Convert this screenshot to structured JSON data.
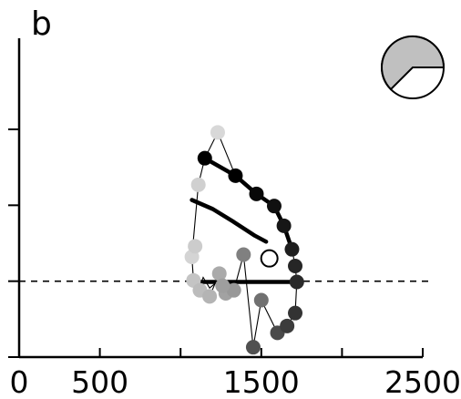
{
  "panel_label": "b",
  "chart_data": {
    "type": "scatter",
    "title": "",
    "xlabel": "",
    "ylabel": "",
    "xlim": [
      0,
      2500
    ],
    "ylim": [
      -1.0,
      3.2
    ],
    "x_ticks": [
      0,
      500,
      1000,
      1500,
      2000,
      2500
    ],
    "x_tick_labels": [
      "0",
      "500",
      "",
      "1500",
      "",
      "2500"
    ],
    "y_ticks": [
      -1,
      0,
      1,
      2
    ],
    "y_tick_labels": [
      "",
      "",
      "",
      ""
    ],
    "reference_line_y": 0,
    "pie_inset": {
      "highlighted_fraction": 0.375,
      "highlight_color": "#c0c0c0"
    },
    "points": [
      {
        "x": 1070,
        "y": 0.32,
        "shade": "#d4d4d4"
      },
      {
        "x": 1090,
        "y": 0.46,
        "shade": "#cccccc"
      },
      {
        "x": 1110,
        "y": 1.27,
        "shade": "#d0d0d0"
      },
      {
        "x": 1230,
        "y": 1.96,
        "shade": "#d8d8d8"
      },
      {
        "x": 1080,
        "y": 0.01,
        "shade": "#c4c4c4"
      },
      {
        "x": 1120,
        "y": -0.12,
        "shade": "#bcbcbc"
      },
      {
        "x": 1180,
        "y": -0.2,
        "shade": "#b4b4b4"
      },
      {
        "x": 1240,
        "y": 0.1,
        "shade": "#aaaaaa"
      },
      {
        "x": 1280,
        "y": -0.16,
        "shade": "#a2a2a2"
      },
      {
        "x": 1330,
        "y": -0.12,
        "shade": "#989898"
      },
      {
        "x": 1260,
        "y": -0.06,
        "shade": "#9e9e9e"
      },
      {
        "x": 1390,
        "y": 0.35,
        "shade": "#808080"
      },
      {
        "x": 1500,
        "y": -0.25,
        "shade": "#707070"
      },
      {
        "x": 1450,
        "y": -0.87,
        "shade": "#505050"
      },
      {
        "x": 1600,
        "y": -0.68,
        "shade": "#4a4a4a"
      },
      {
        "x": 1660,
        "y": -0.59,
        "shade": "#3c3c3c"
      },
      {
        "x": 1710,
        "y": -0.42,
        "shade": "#333333"
      },
      {
        "x": 1720,
        "y": -0.01,
        "shade": "#2a2a2a"
      },
      {
        "x": 1710,
        "y": 0.2,
        "shade": "#262626"
      },
      {
        "x": 1690,
        "y": 0.42,
        "shade": "#1e1e1e"
      },
      {
        "x": 1640,
        "y": 0.73,
        "shade": "#161616"
      },
      {
        "x": 1580,
        "y": 0.99,
        "shade": "#101010"
      },
      {
        "x": 1470,
        "y": 1.15,
        "shade": "#080808"
      },
      {
        "x": 1340,
        "y": 1.39,
        "shade": "#000000"
      },
      {
        "x": 1150,
        "y": 1.62,
        "shade": "#000000"
      }
    ],
    "open_circle": {
      "x": 1550,
      "y": 0.3
    },
    "thin_path": [
      [
        1150,
        1.62
      ],
      [
        1230,
        1.96
      ],
      [
        1340,
        1.39
      ],
      [
        1470,
        1.15
      ],
      [
        1580,
        0.99
      ],
      [
        1640,
        0.73
      ],
      [
        1690,
        0.42
      ],
      [
        1710,
        0.2
      ],
      [
        1720,
        -0.01
      ],
      [
        1710,
        -0.42
      ],
      [
        1660,
        -0.59
      ],
      [
        1600,
        -0.68
      ],
      [
        1500,
        -0.25
      ],
      [
        1450,
        -0.87
      ],
      [
        1390,
        0.35
      ],
      [
        1330,
        -0.12
      ],
      [
        1280,
        -0.16
      ],
      [
        1240,
        0.1
      ],
      [
        1180,
        -0.2
      ],
      [
        1120,
        -0.12
      ],
      [
        1080,
        0.01
      ],
      [
        1070,
        0.32
      ],
      [
        1110,
        1.27
      ],
      [
        1150,
        1.62
      ]
    ],
    "thin_path_2": [
      [
        1070,
        0.01
      ],
      [
        1110,
        -0.12
      ],
      [
        1140,
        0.05
      ],
      [
        1180,
        -0.09
      ],
      [
        1220,
        -0.02
      ],
      [
        1260,
        0.08
      ],
      [
        1300,
        -0.13
      ],
      [
        1340,
        -0.05
      ]
    ],
    "fit_curves": [
      {
        "points": [
          [
            1150,
            1.62
          ],
          [
            1340,
            1.39
          ],
          [
            1470,
            1.15
          ],
          [
            1580,
            0.99
          ],
          [
            1640,
            0.73
          ],
          [
            1690,
            0.42
          ]
        ]
      },
      {
        "points": [
          [
            1070,
            1.07
          ],
          [
            1200,
            0.95
          ],
          [
            1330,
            0.78
          ],
          [
            1460,
            0.6
          ],
          [
            1530,
            0.52
          ]
        ]
      },
      {
        "points": [
          [
            1070,
            -0.01
          ],
          [
            1720,
            -0.01
          ]
        ]
      }
    ]
  }
}
